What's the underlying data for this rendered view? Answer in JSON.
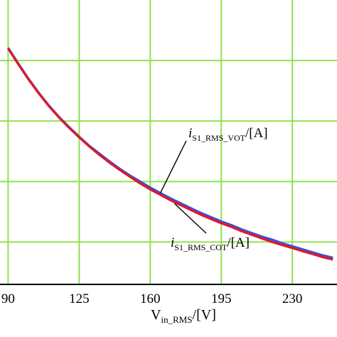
{
  "chart_data": {
    "type": "line",
    "x": [
      90,
      95,
      100,
      105,
      110,
      115,
      120,
      125,
      130,
      135,
      140,
      145,
      150,
      155,
      160,
      165,
      170,
      175,
      180,
      185,
      190,
      195,
      200,
      205,
      210,
      215,
      220,
      225,
      230,
      235,
      240,
      245,
      250
    ],
    "series": [
      {
        "name": "i_S1_RMS_VOT/[A]",
        "display": {
          "main": "i",
          "sub": "S1_RMS_VOT",
          "tail": "/[A]"
        },
        "color": "#3a4fd8",
        "values": [
          7.71,
          7.45,
          7.2,
          6.97,
          6.76,
          6.57,
          6.4,
          6.24,
          6.09,
          5.96,
          5.83,
          5.71,
          5.6,
          5.5,
          5.4,
          5.31,
          5.22,
          5.14,
          5.06,
          4.98,
          4.91,
          4.84,
          4.78,
          4.71,
          4.65,
          4.59,
          4.54,
          4.48,
          4.43,
          4.38,
          4.33,
          4.28,
          4.24
        ]
      },
      {
        "name": "i_S1_RMS_COT/[A]",
        "display": {
          "main": "i",
          "sub": "S1_RMS_COT",
          "tail": "/[A]"
        },
        "color": "#e0182a",
        "values": [
          7.7,
          7.44,
          7.19,
          6.96,
          6.75,
          6.56,
          6.39,
          6.23,
          6.08,
          5.94,
          5.81,
          5.69,
          5.58,
          5.47,
          5.37,
          5.28,
          5.19,
          5.11,
          5.03,
          4.95,
          4.88,
          4.81,
          4.75,
          4.68,
          4.62,
          4.56,
          4.5,
          4.45,
          4.4,
          4.35,
          4.3,
          4.25,
          4.21
        ]
      }
    ],
    "xlabel": {
      "main": "V",
      "sub": "in_RMS",
      "tail": "/[V]"
    },
    "xticks": [
      90,
      125,
      160,
      195,
      230
    ],
    "xlim": [
      86,
      252
    ],
    "ylim": [
      3.8,
      8.5
    ],
    "ygrid": [
      4.5,
      5.5,
      6.5,
      7.5
    ],
    "grid": true,
    "grid_color": "#90e050",
    "frame_color": "#000000"
  }
}
